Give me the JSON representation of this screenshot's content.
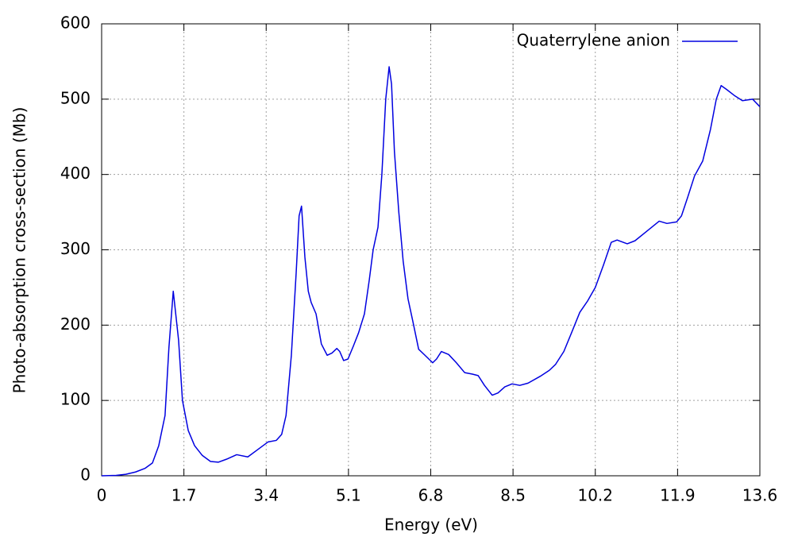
{
  "chart_data": {
    "type": "line",
    "xlabel": "Energy (eV)",
    "ylabel": "Photo-absorption cross-section (Mb)",
    "xlim": [
      0,
      13.6
    ],
    "ylim": [
      0,
      600
    ],
    "xticks": [
      0,
      1.7,
      3.4,
      5.1,
      6.8,
      8.5,
      10.2,
      11.9,
      13.6
    ],
    "yticks": [
      0,
      100,
      200,
      300,
      400,
      500,
      600
    ],
    "grid": true,
    "legend": "upper right",
    "x": [
      0,
      0.3,
      0.5,
      0.7,
      0.9,
      1.05,
      1.18,
      1.31,
      1.39,
      1.48,
      1.59,
      1.67,
      1.79,
      1.92,
      2.08,
      2.25,
      2.41,
      2.58,
      2.79,
      3.02,
      3.23,
      3.44,
      3.61,
      3.72,
      3.81,
      3.92,
      4.02,
      4.08,
      4.13,
      4.2,
      4.27,
      4.33,
      4.43,
      4.54,
      4.66,
      4.76,
      4.86,
      4.92,
      5.0,
      5.09,
      5.2,
      5.31,
      5.43,
      5.53,
      5.61,
      5.71,
      5.79,
      5.87,
      5.94,
      5.99,
      6.05,
      6.14,
      6.23,
      6.33,
      6.43,
      6.55,
      6.68,
      6.84,
      6.92,
      7.02,
      7.17,
      7.33,
      7.5,
      7.66,
      7.78,
      7.91,
      8.07,
      8.19,
      8.33,
      8.48,
      8.64,
      8.81,
      9.06,
      9.25,
      9.38,
      9.55,
      9.71,
      9.88,
      10.04,
      10.2,
      10.37,
      10.53,
      10.65,
      10.86,
      11.02,
      11.27,
      11.52,
      11.68,
      11.88,
      11.98,
      12.11,
      12.25,
      12.42,
      12.58,
      12.7,
      12.8,
      12.91,
      13.07,
      13.24,
      13.45,
      13.6
    ],
    "series": [
      {
        "name": "Quaterrylene anion",
        "color": "#0000e0",
        "values": [
          0,
          0.5,
          2,
          5,
          10,
          17,
          40,
          80,
          170,
          245,
          180,
          100,
          60,
          40,
          27,
          19,
          18,
          22,
          28,
          25,
          35,
          45,
          47,
          55,
          80,
          160,
          270,
          345,
          358,
          290,
          245,
          230,
          215,
          175,
          160,
          163,
          169,
          165,
          153,
          155,
          172,
          190,
          215,
          260,
          300,
          330,
          400,
          500,
          543,
          520,
          430,
          350,
          285,
          235,
          205,
          168,
          160,
          150,
          155,
          165,
          161,
          150,
          137,
          135,
          133,
          120,
          107,
          110,
          118,
          122,
          120,
          123,
          132,
          140,
          148,
          165,
          190,
          217,
          232,
          250,
          280,
          310,
          313,
          308,
          312,
          325,
          338,
          335,
          337,
          345,
          370,
          398,
          418,
          460,
          500,
          518,
          513,
          505,
          498,
          500,
          490
        ]
      }
    ]
  }
}
